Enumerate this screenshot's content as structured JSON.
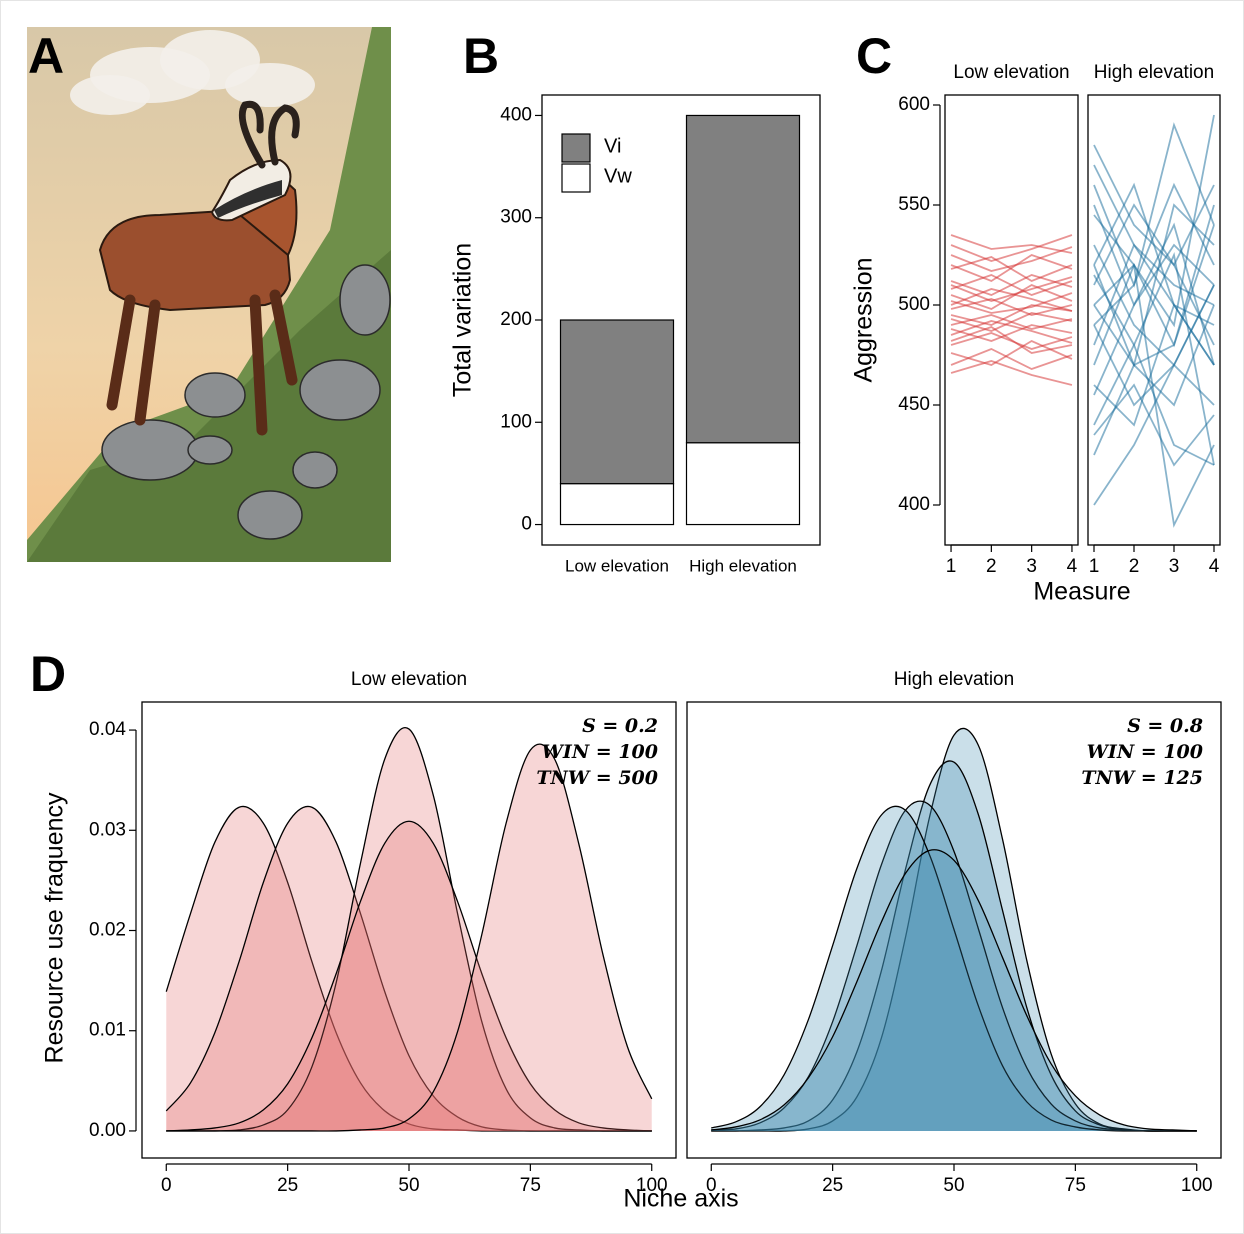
{
  "chart_data": [
    {
      "type": "image",
      "panel_label": "A"
    },
    {
      "type": "bar",
      "panel_label": "B",
      "stacked": true,
      "ylabel": "Total variation",
      "categories": [
        "Low elevation",
        "High elevation"
      ],
      "series": [
        {
          "name": "Vi",
          "color": "#808080",
          "values": [
            160,
            320
          ]
        },
        {
          "name": "Vw",
          "color": "#ffffff",
          "values": [
            40,
            80
          ]
        }
      ],
      "ylim": [
        -20,
        420
      ],
      "yticks": [
        0,
        100,
        200,
        300,
        400
      ],
      "legend": "top-left"
    },
    {
      "type": "line",
      "panel_label": "C",
      "ylabel": "Aggression",
      "xlabel": "Measure",
      "x": [
        1,
        2,
        3,
        4
      ],
      "xlim": [
        0.85,
        4.15
      ],
      "xticks": [
        1,
        2,
        3,
        4
      ],
      "ylim": [
        380,
        605
      ],
      "yticks": [
        400,
        450,
        500,
        550,
        600
      ],
      "facets": [
        {
          "title": "Low elevation",
          "color": "#d42a2a",
          "series": [
            {
              "values": [
                505,
                498,
                510,
                502
              ]
            },
            {
              "values": [
                490,
                495,
                488,
                493
              ]
            },
            {
              "values": [
                520,
                512,
                525,
                518
              ]
            },
            {
              "values": [
                480,
                486,
                478,
                484
              ]
            },
            {
              "values": [
                498,
                503,
                495,
                500
              ]
            },
            {
              "values": [
                512,
                505,
                515,
                509
              ]
            },
            {
              "values": [
                470,
                478,
                468,
                475
              ]
            },
            {
              "values": [
                530,
                522,
                528,
                535
              ]
            },
            {
              "values": [
                495,
                490,
                500,
                497
              ]
            },
            {
              "values": [
                485,
                492,
                487,
                481
              ]
            },
            {
              "values": [
                508,
                515,
                505,
                512
              ]
            },
            {
              "values": [
                476,
                470,
                482,
                473
              ]
            },
            {
              "values": [
                502,
                496,
                499,
                506
              ]
            },
            {
              "values": [
                518,
                524,
                512,
                520
              ]
            },
            {
              "values": [
                488,
                482,
                490,
                486
              ]
            },
            {
              "values": [
                535,
                528,
                530,
                526
              ]
            },
            {
              "values": [
                466,
                472,
                465,
                460
              ]
            },
            {
              "values": [
                500,
                508,
                503,
                497
              ]
            },
            {
              "values": [
                493,
                487,
                496,
                492
              ]
            },
            {
              "values": [
                525,
                517,
                522,
                529
              ]
            },
            {
              "values": [
                482,
                489,
                476,
                480
              ]
            },
            {
              "values": [
                510,
                502,
                508,
                514
              ]
            }
          ]
        },
        {
          "title": "High elevation",
          "color": "#13699a",
          "series": [
            {
              "values": [
                580,
                540,
                520,
                560
              ]
            },
            {
              "values": [
                400,
                430,
                470,
                450
              ]
            },
            {
              "values": [
                550,
                500,
                530,
                510
              ]
            },
            {
              "values": [
                470,
                520,
                480,
                540
              ]
            },
            {
              "values": [
                520,
                560,
                500,
                470
              ]
            },
            {
              "values": [
                440,
                480,
                430,
                420
              ]
            },
            {
              "values": [
                500,
                470,
                550,
                530
              ]
            },
            {
              "values": [
                560,
                510,
                590,
                540
              ]
            },
            {
              "values": [
                480,
                530,
                500,
                490
              ]
            },
            {
              "values": [
                425,
                470,
                450,
                500
              ]
            },
            {
              "values": [
                530,
                490,
                470,
                510
              ]
            },
            {
              "values": [
                510,
                550,
                520,
                480
              ]
            },
            {
              "values": [
                460,
                440,
                500,
                470
              ]
            },
            {
              "values": [
                545,
                520,
                390,
                430
              ]
            },
            {
              "values": [
                490,
                510,
                560,
                520
              ]
            },
            {
              "values": [
                520,
                470,
                480,
                550
              ]
            },
            {
              "values": [
                435,
                460,
                420,
                445
              ]
            },
            {
              "values": [
                570,
                530,
                510,
                500
              ]
            },
            {
              "values": [
                500,
                520,
                490,
                595
              ]
            },
            {
              "values": [
                455,
                500,
                540,
                470
              ]
            },
            {
              "values": [
                515,
                480,
                525,
                420
              ]
            },
            {
              "values": [
                490,
                450,
                470,
                510
              ]
            }
          ]
        }
      ]
    },
    {
      "type": "area",
      "panel_label": "D",
      "ylabel": "Resource use fraquency",
      "xlabel": "Niche axis",
      "x": [
        0,
        5,
        10,
        15,
        20,
        25,
        30,
        35,
        40,
        45,
        50,
        55,
        60,
        65,
        70,
        75,
        80,
        85,
        90,
        95,
        100
      ],
      "xlim": [
        -5,
        105
      ],
      "xticks": [
        0,
        25,
        50,
        75,
        100
      ],
      "ylim": [
        -0.0027,
        0.0428
      ],
      "yticks": [
        {
          "value": 0,
          "label": "0.00"
        },
        0.01,
        0.02,
        0.03,
        0.04
      ],
      "facets": [
        {
          "title": "Low elevation",
          "color": "#e06666",
          "annotations": [
            "S = 0.2",
            "WIN = 100",
            "TNW = 500"
          ],
          "series": [
            {
              "values": [
                0.0139,
                0.0217,
                0.0288,
                0.0323,
                0.0307,
                0.0248,
                0.0169,
                0.0098,
                0.0048,
                0.002,
                0.0007,
                0.0002,
                0.0001,
                0,
                0,
                0,
                0,
                0,
                0,
                0,
                0
              ]
            },
            {
              "values": [
                0.002,
                0.0048,
                0.0098,
                0.0169,
                0.0248,
                0.0307,
                0.0323,
                0.0288,
                0.0217,
                0.0139,
                0.0075,
                0.0035,
                0.0014,
                0.0004,
                0.0001,
                0,
                0,
                0,
                0,
                0,
                0
              ]
            },
            {
              "values": [
                0,
                0,
                0,
                0.0001,
                0.0006,
                0.0021,
                0.0064,
                0.0148,
                0.0267,
                0.0371,
                0.0401,
                0.0335,
                0.0217,
                0.0109,
                0.0042,
                0.0013,
                0.0003,
                0.0001,
                0,
                0,
                0
              ]
            },
            {
              "values": [
                0,
                0.0001,
                0.0003,
                0.0008,
                0.0021,
                0.0047,
                0.0093,
                0.0157,
                0.0229,
                0.0287,
                0.0309,
                0.0287,
                0.0229,
                0.0157,
                0.0093,
                0.0047,
                0.0021,
                0.0008,
                0.0003,
                0.0001,
                0
              ]
            },
            {
              "values": [
                0,
                0,
                0,
                0,
                0,
                0,
                0,
                0,
                0.0001,
                0.0003,
                0.0012,
                0.0039,
                0.0099,
                0.0196,
                0.0307,
                0.038,
                0.0371,
                0.0286,
                0.0175,
                0.0084,
                0.0032
              ]
            }
          ]
        },
        {
          "title": "High elevation",
          "color": "#3a87ad",
          "annotations": [
            "S = 0.8",
            "WIN = 100",
            "TNW = 125"
          ],
          "series": [
            {
              "values": [
                0,
                0,
                0,
                0,
                0.0002,
                0.001,
                0.0034,
                0.0092,
                0.0193,
                0.0314,
                0.0395,
                0.0385,
                0.0291,
                0.017,
                0.0077,
                0.0027,
                0.0007,
                0.0002,
                0,
                0,
                0
              ]
            },
            {
              "values": [
                0,
                0,
                0.0001,
                0.0003,
                0.001,
                0.0031,
                0.0079,
                0.0159,
                0.0261,
                0.0345,
                0.0368,
                0.0316,
                0.022,
                0.0123,
                0.0056,
                0.002,
                0.0006,
                0.0001,
                0,
                0,
                0
              ]
            },
            {
              "values": [
                0.0001,
                0.0002,
                0.0008,
                0.0023,
                0.0054,
                0.0109,
                0.0185,
                0.0265,
                0.032,
                0.0325,
                0.0279,
                0.0202,
                0.0123,
                0.0063,
                0.0027,
                0.001,
                0.0003,
                0.0001,
                0,
                0,
                0
              ]
            },
            {
              "values": [
                0.0003,
                0.0009,
                0.0024,
                0.0056,
                0.0111,
                0.0185,
                0.0262,
                0.0315,
                0.032,
                0.0275,
                0.0201,
                0.0125,
                0.0065,
                0.0029,
                0.0011,
                0.0004,
                0.0001,
                0,
                0,
                0,
                0
              ]
            },
            {
              "values": [
                0.0001,
                0.0004,
                0.0011,
                0.0026,
                0.0053,
                0.0094,
                0.0149,
                0.0208,
                0.0257,
                0.028,
                0.027,
                0.023,
                0.0173,
                0.0115,
                0.0067,
                0.0035,
                0.0016,
                0.0006,
                0.0002,
                0.0001,
                0
              ]
            }
          ]
        }
      ]
    }
  ]
}
